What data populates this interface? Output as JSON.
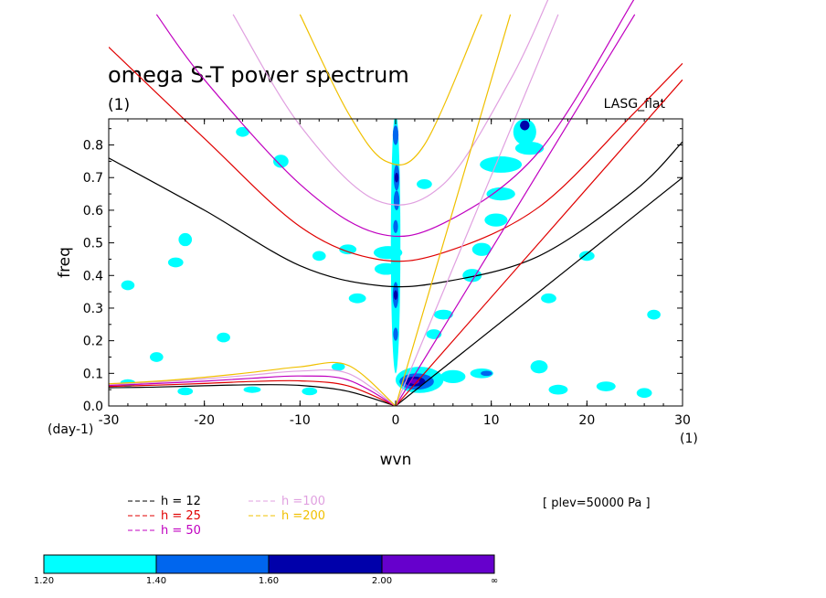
{
  "chart_data": {
    "type": "contour",
    "title": "omega S-T power spectrum",
    "subtitle": "(1)",
    "source_label": "LASG_flat",
    "xlabel": "wvn",
    "ylabel": "freq",
    "x_unit_label": "(1)",
    "y_unit_label": "(day-1)",
    "xlim": [
      -30,
      30
    ],
    "ylim": [
      0,
      0.88
    ],
    "xticks": [
      -30,
      -20,
      -10,
      0,
      10,
      20,
      30
    ],
    "yticks": [
      0.0,
      0.1,
      0.2,
      0.3,
      0.4,
      0.5,
      0.6,
      0.7,
      0.8
    ],
    "annotation": "[ plev=50000 Pa ]",
    "legend": {
      "placement": "bottom-left",
      "entries": [
        {
          "label": "h = 12",
          "h": 12,
          "color": "#000000"
        },
        {
          "label": "h = 25",
          "h": 25,
          "color": "#e00000"
        },
        {
          "label": "h = 50",
          "h": 50,
          "color": "#c000c0"
        },
        {
          "label": "h =100",
          "h": 100,
          "color": "#e0a0e0"
        },
        {
          "label": "h =200",
          "h": 200,
          "color": "#f0c000"
        }
      ]
    },
    "colorbar": {
      "levels": [
        "1.20",
        "1.40",
        "1.60",
        "2.00",
        "∞"
      ],
      "colors": [
        "#00ffff",
        "#0066ee",
        "#0000aa",
        "#6600cc"
      ]
    },
    "series": [
      {
        "name": "h = 12",
        "color": "#000000",
        "kelvin": [
          [
            0,
            0
          ],
          [
            30,
            0.7
          ]
        ],
        "rossby": [
          [
            -30,
            0.056
          ],
          [
            -25,
            0.058
          ],
          [
            -20,
            0.062
          ],
          [
            -15,
            0.065
          ],
          [
            -10,
            0.063
          ],
          [
            -5,
            0.045
          ],
          [
            0,
            0
          ]
        ],
        "ig": [
          [
            -30,
            0.76
          ],
          [
            -20,
            0.6
          ],
          [
            -10,
            0.43
          ],
          [
            -2,
            0.37
          ],
          [
            5,
            0.38
          ],
          [
            15,
            0.46
          ],
          [
            25,
            0.66
          ],
          [
            30,
            0.81
          ]
        ]
      },
      {
        "name": "h = 25",
        "color": "#e00000",
        "kelvin": [
          [
            0,
            0
          ],
          [
            30,
            1.0
          ]
        ],
        "rossby": [
          [
            -30,
            0.06
          ],
          [
            -25,
            0.064
          ],
          [
            -20,
            0.069
          ],
          [
            -15,
            0.075
          ],
          [
            -10,
            0.077
          ],
          [
            -5,
            0.062
          ],
          [
            0,
            0
          ]
        ],
        "ig": [
          [
            -30,
            1.1
          ],
          [
            -20,
            0.82
          ],
          [
            -10,
            0.55
          ],
          [
            -2,
            0.45
          ],
          [
            5,
            0.47
          ],
          [
            15,
            0.61
          ],
          [
            25,
            0.9
          ],
          [
            30,
            1.05
          ]
        ]
      },
      {
        "name": "h = 50",
        "color": "#c000c0",
        "kelvin": [
          [
            0,
            0
          ],
          [
            25,
            1.2
          ]
        ],
        "rossby": [
          [
            -30,
            0.063
          ],
          [
            -25,
            0.069
          ],
          [
            -20,
            0.076
          ],
          [
            -15,
            0.085
          ],
          [
            -10,
            0.092
          ],
          [
            -5,
            0.08
          ],
          [
            0,
            0
          ]
        ],
        "ig": [
          [
            -25,
            1.2
          ],
          [
            -20,
            1.0
          ],
          [
            -10,
            0.68
          ],
          [
            -2,
            0.53
          ],
          [
            5,
            0.56
          ],
          [
            15,
            0.78
          ],
          [
            25,
            1.25
          ]
        ]
      },
      {
        "name": "h =100",
        "color": "#e0a0e0",
        "kelvin": [
          [
            0,
            0
          ],
          [
            17,
            1.2
          ]
        ],
        "rossby": [
          [
            -30,
            0.066
          ],
          [
            -25,
            0.073
          ],
          [
            -20,
            0.083
          ],
          [
            -15,
            0.095
          ],
          [
            -10,
            0.107
          ],
          [
            -5,
            0.1
          ],
          [
            0,
            0
          ]
        ],
        "ig": [
          [
            -17,
            1.2
          ],
          [
            -10,
            0.86
          ],
          [
            -2,
            0.63
          ],
          [
            5,
            0.68
          ],
          [
            12,
            1.0
          ],
          [
            16,
            1.25
          ]
        ]
      },
      {
        "name": "h =200",
        "color": "#f0c000",
        "kelvin": [
          [
            0,
            0
          ],
          [
            12,
            1.2
          ]
        ],
        "rossby": [
          [
            -30,
            0.068
          ],
          [
            -25,
            0.076
          ],
          [
            -20,
            0.088
          ],
          [
            -15,
            0.103
          ],
          [
            -10,
            0.12
          ],
          [
            -5,
            0.125
          ],
          [
            0,
            0
          ]
        ],
        "ig": [
          [
            -10,
            1.2
          ],
          [
            -5,
            0.9
          ],
          [
            -1,
            0.75
          ],
          [
            3,
            0.8
          ],
          [
            9,
            1.2
          ]
        ]
      }
    ],
    "contour_regions": [
      {
        "level": 1,
        "cx": 0,
        "cy": 0.5,
        "rx": 0.5,
        "ry": 0.4
      },
      {
        "level": 2,
        "cx": 0.1,
        "cy": 0.7,
        "rx": 0.3,
        "ry": 0.04
      },
      {
        "level": 2,
        "cx": 0.1,
        "cy": 0.63,
        "rx": 0.3,
        "ry": 0.03
      },
      {
        "level": 3,
        "cx": 0.1,
        "cy": 0.7,
        "rx": 0.2,
        "ry": 0.015
      },
      {
        "level": 2,
        "cx": 0,
        "cy": 0.34,
        "rx": 0.3,
        "ry": 0.04
      },
      {
        "level": 3,
        "cx": 0,
        "cy": 0.34,
        "rx": 0.2,
        "ry": 0.015
      },
      {
        "level": 2,
        "cx": 0,
        "cy": 0.83,
        "rx": 0.3,
        "ry": 0.03
      },
      {
        "level": 2,
        "cx": 0,
        "cy": 0.55,
        "rx": 0.25,
        "ry": 0.02
      },
      {
        "level": 2,
        "cx": 0,
        "cy": 0.22,
        "rx": 0.25,
        "ry": 0.02
      },
      {
        "level": 1,
        "cx": 2.5,
        "cy": 0.08,
        "rx": 2.5,
        "ry": 0.04
      },
      {
        "level": 2,
        "cx": 2.2,
        "cy": 0.075,
        "rx": 1.8,
        "ry": 0.025
      },
      {
        "level": 3,
        "cx": 2.0,
        "cy": 0.075,
        "rx": 1.1,
        "ry": 0.015
      },
      {
        "level": 4,
        "cx": 2.0,
        "cy": 0.075,
        "rx": 0.5,
        "ry": 0.008
      },
      {
        "level": 1,
        "cx": 13.5,
        "cy": 0.84,
        "rx": 1.2,
        "ry": 0.04
      },
      {
        "level": 3,
        "cx": 13.5,
        "cy": 0.86,
        "rx": 0.5,
        "ry": 0.015
      },
      {
        "level": 1,
        "cx": 11,
        "cy": 0.74,
        "rx": 2.2,
        "ry": 0.025
      },
      {
        "level": 1,
        "cx": 14,
        "cy": 0.79,
        "rx": 1.5,
        "ry": 0.02
      },
      {
        "level": 1,
        "cx": 11,
        "cy": 0.65,
        "rx": 1.5,
        "ry": 0.02
      },
      {
        "level": 1,
        "cx": 10.5,
        "cy": 0.57,
        "rx": 1.2,
        "ry": 0.02
      },
      {
        "level": 1,
        "cx": 9,
        "cy": 0.48,
        "rx": 1.0,
        "ry": 0.02
      },
      {
        "level": 1,
        "cx": 8,
        "cy": 0.4,
        "rx": 1.0,
        "ry": 0.02
      },
      {
        "level": 1,
        "cx": 5,
        "cy": 0.28,
        "rx": 1.0,
        "ry": 0.015
      },
      {
        "level": 1,
        "cx": 6,
        "cy": 0.09,
        "rx": 1.3,
        "ry": 0.02
      },
      {
        "level": 1,
        "cx": 9,
        "cy": 0.1,
        "rx": 1.2,
        "ry": 0.015
      },
      {
        "level": 2,
        "cx": 9.5,
        "cy": 0.1,
        "rx": 0.6,
        "ry": 0.008
      },
      {
        "level": 1,
        "cx": -0.8,
        "cy": 0.47,
        "rx": 1.5,
        "ry": 0.02
      },
      {
        "level": 1,
        "cx": -1,
        "cy": 0.42,
        "rx": 1.2,
        "ry": 0.018
      },
      {
        "level": 1,
        "cx": -5,
        "cy": 0.48,
        "rx": 0.9,
        "ry": 0.015
      },
      {
        "level": 1,
        "cx": -22,
        "cy": 0.51,
        "rx": 0.7,
        "ry": 0.02
      },
      {
        "level": 1,
        "cx": -28,
        "cy": 0.37,
        "rx": 0.7,
        "ry": 0.015
      },
      {
        "level": 1,
        "cx": -23,
        "cy": 0.44,
        "rx": 0.8,
        "ry": 0.015
      },
      {
        "level": 1,
        "cx": -12,
        "cy": 0.75,
        "rx": 0.8,
        "ry": 0.02
      },
      {
        "level": 1,
        "cx": -16,
        "cy": 0.84,
        "rx": 0.7,
        "ry": 0.015
      },
      {
        "level": 1,
        "cx": -4,
        "cy": 0.33,
        "rx": 0.9,
        "ry": 0.015
      },
      {
        "level": 1,
        "cx": -8,
        "cy": 0.46,
        "rx": 0.7,
        "ry": 0.015
      },
      {
        "level": 1,
        "cx": 20,
        "cy": 0.46,
        "rx": 0.8,
        "ry": 0.015
      },
      {
        "level": 1,
        "cx": 22,
        "cy": 0.06,
        "rx": 1.0,
        "ry": 0.015
      },
      {
        "level": 1,
        "cx": 15,
        "cy": 0.12,
        "rx": 0.9,
        "ry": 0.02
      },
      {
        "level": 1,
        "cx": 26,
        "cy": 0.04,
        "rx": 0.8,
        "ry": 0.015
      },
      {
        "level": 1,
        "cx": 17,
        "cy": 0.05,
        "rx": 1.0,
        "ry": 0.015
      },
      {
        "level": 1,
        "cx": -22,
        "cy": 0.045,
        "rx": 0.8,
        "ry": 0.012
      },
      {
        "level": 1,
        "cx": -15,
        "cy": 0.05,
        "rx": 0.9,
        "ry": 0.01
      },
      {
        "level": 1,
        "cx": -9,
        "cy": 0.045,
        "rx": 0.8,
        "ry": 0.012
      },
      {
        "level": 1,
        "cx": -28,
        "cy": 0.07,
        "rx": 0.8,
        "ry": 0.012
      },
      {
        "level": 1,
        "cx": -6,
        "cy": 0.12,
        "rx": 0.7,
        "ry": 0.012
      },
      {
        "level": 1,
        "cx": 4,
        "cy": 0.22,
        "rx": 0.8,
        "ry": 0.015
      },
      {
        "level": 1,
        "cx": 3,
        "cy": 0.68,
        "rx": 0.8,
        "ry": 0.015
      },
      {
        "level": 1,
        "cx": 16,
        "cy": 0.33,
        "rx": 0.8,
        "ry": 0.015
      },
      {
        "level": 1,
        "cx": 27,
        "cy": 0.28,
        "rx": 0.7,
        "ry": 0.015
      },
      {
        "level": 1,
        "cx": -18,
        "cy": 0.21,
        "rx": 0.7,
        "ry": 0.015
      },
      {
        "level": 1,
        "cx": -25,
        "cy": 0.15,
        "rx": 0.7,
        "ry": 0.015
      }
    ]
  }
}
